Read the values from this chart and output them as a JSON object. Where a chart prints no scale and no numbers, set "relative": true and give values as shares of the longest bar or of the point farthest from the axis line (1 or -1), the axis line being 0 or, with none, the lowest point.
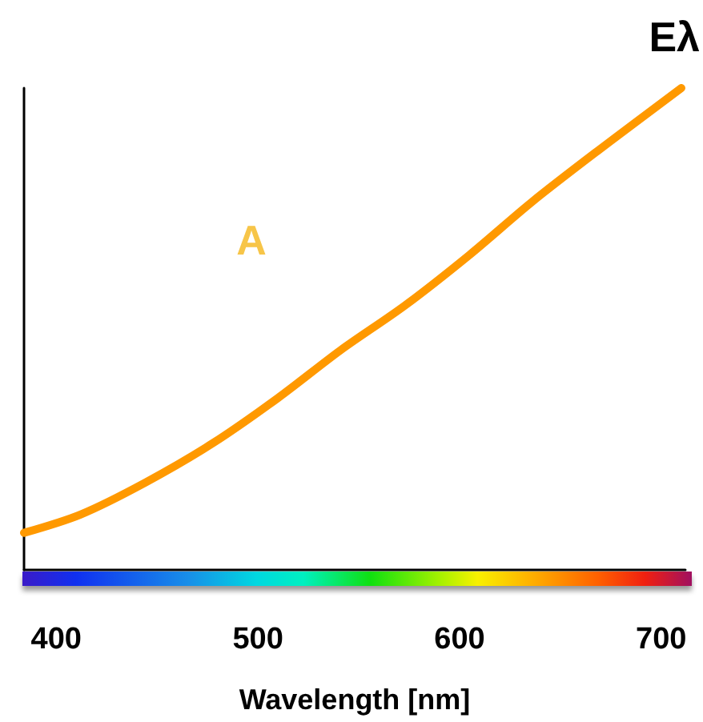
{
  "chart_data": {
    "type": "line",
    "ylabel": "Eλ",
    "xlabel": "Wavelength [nm]",
    "relative": true,
    "tick_labels": "x",
    "grid": false,
    "marker": "none",
    "line_style": "solid",
    "xlim": [
      384,
      712
    ],
    "xticks": [
      400,
      500,
      600,
      700
    ],
    "annotations": [
      "A"
    ],
    "series": [
      {
        "color": "#ff9900",
        "x": [
          384,
          412,
          444,
          478,
          510,
          541,
          573,
          605,
          636,
          668,
          710
        ],
        "values": [
          0.077,
          0.115,
          0.181,
          0.264,
          0.357,
          0.456,
          0.549,
          0.654,
          0.764,
          0.868,
          1
        ]
      }
    ]
  }
}
